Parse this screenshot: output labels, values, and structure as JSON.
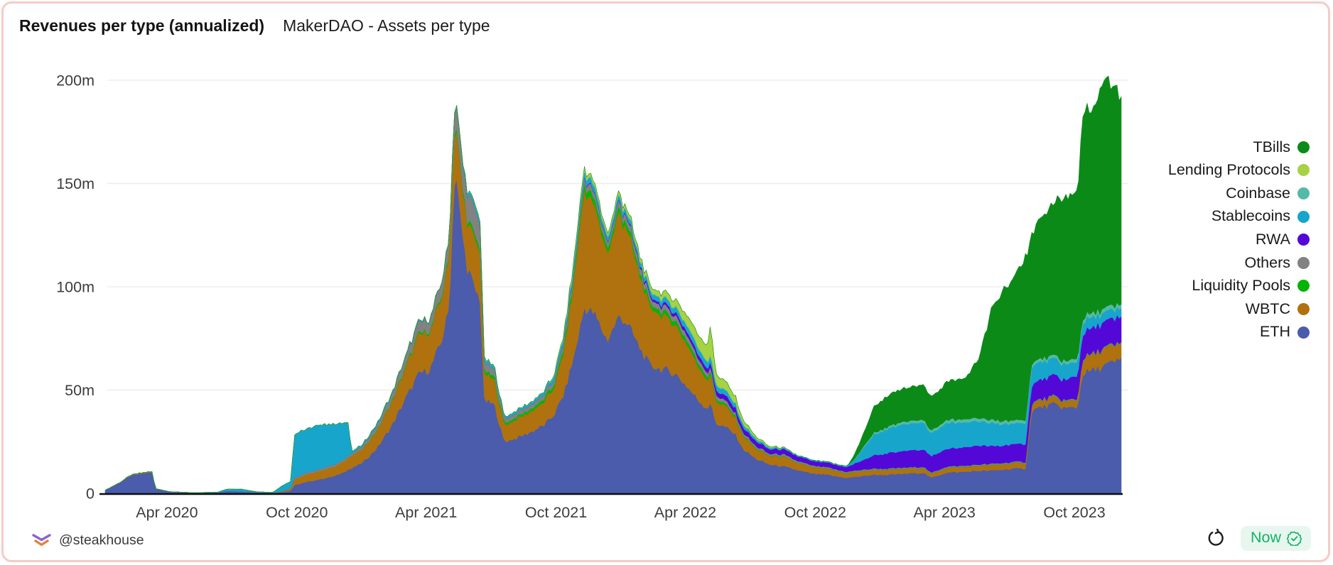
{
  "header": {
    "title": "Revenues per type (annualized)",
    "subtitle": "MakerDAO - Assets per type"
  },
  "footer": {
    "handle": "@steakhouse",
    "now_label": "Now",
    "accent_green": "#15b267",
    "badge_bg": "#e7f6ee"
  },
  "icons": {
    "logo": "steakhouse-bull-icon",
    "refresh": "refresh-icon",
    "verified": "badge-check-icon"
  },
  "chart_data": {
    "type": "area",
    "stacked": true,
    "title": "Revenues per type (annualized)",
    "subtitle": "MakerDAO - Assets per type",
    "unit": "USD millions (annualized)",
    "grid": "horizontal",
    "legend_position": "right",
    "legend_order_note": "legend lists topmost stacked series first",
    "ylim": [
      0,
      200
    ],
    "x_domain": [
      "2019-12-28",
      "2023-12-08"
    ],
    "y_ticks": [
      {
        "value": 0,
        "label": "0"
      },
      {
        "value": 50,
        "label": "50m"
      },
      {
        "value": 100,
        "label": "100m"
      },
      {
        "value": 150,
        "label": "150m"
      },
      {
        "value": 200,
        "label": "200m"
      }
    ],
    "x_ticks": [
      {
        "date": "2020-04-01",
        "label": "Apr 2020"
      },
      {
        "date": "2020-10-01",
        "label": "Oct 2020"
      },
      {
        "date": "2021-04-01",
        "label": "Apr 2021"
      },
      {
        "date": "2021-10-01",
        "label": "Oct 2021"
      },
      {
        "date": "2022-04-01",
        "label": "Apr 2022"
      },
      {
        "date": "2022-10-01",
        "label": "Oct 2022"
      },
      {
        "date": "2023-04-01",
        "label": "Apr 2023"
      },
      {
        "date": "2023-10-01",
        "label": "Oct 2023"
      }
    ],
    "series": [
      {
        "name": "ETH",
        "color": "#4a5cab"
      },
      {
        "name": "WBTC",
        "color": "#b0720e"
      },
      {
        "name": "Liquidity Pools",
        "color": "#04b404"
      },
      {
        "name": "Others",
        "color": "#828282"
      },
      {
        "name": "RWA",
        "color": "#5408d8"
      },
      {
        "name": "Stablecoins",
        "color": "#18a5cc"
      },
      {
        "name": "Coinbase",
        "color": "#53baa5"
      },
      {
        "name": "Lending Protocols",
        "color": "#a6d243"
      },
      {
        "name": "TBills",
        "color": "#0c8a18"
      }
    ],
    "rows_format": [
      "date",
      "ETH",
      "WBTC",
      "Liquidity Pools",
      "Others",
      "RWA",
      "Stablecoins",
      "Coinbase",
      "Lending Protocols",
      "TBills"
    ],
    "rows": [
      [
        "2020-01-05",
        1.5,
        0,
        0,
        0,
        0,
        0,
        0,
        0,
        0
      ],
      [
        "2020-01-25",
        5,
        0.1,
        0,
        0,
        0,
        0,
        0,
        0,
        0
      ],
      [
        "2020-02-10",
        8.5,
        0.2,
        0,
        0.1,
        0,
        0,
        0,
        0,
        0
      ],
      [
        "2020-03-01",
        9.8,
        0.3,
        0,
        0.1,
        0,
        0,
        0,
        0,
        0
      ],
      [
        "2020-03-11",
        10,
        0.3,
        0,
        0.1,
        0,
        0,
        0,
        0,
        0
      ],
      [
        "2020-03-16",
        2.2,
        0.1,
        0,
        0,
        0,
        0,
        0,
        0,
        0
      ],
      [
        "2020-04-05",
        0.8,
        0,
        0,
        0,
        0,
        0,
        0,
        0,
        0
      ],
      [
        "2020-05-10",
        0.3,
        0,
        0,
        0,
        0,
        0,
        0,
        0,
        0
      ],
      [
        "2020-06-12",
        0.4,
        0,
        0,
        0,
        0,
        0.2,
        0,
        0,
        0
      ],
      [
        "2020-06-25",
        1.2,
        0,
        0,
        0,
        0,
        0.9,
        0,
        0,
        0
      ],
      [
        "2020-07-15",
        0.9,
        0,
        0,
        0,
        0,
        1.1,
        0,
        0,
        0
      ],
      [
        "2020-08-05",
        0.5,
        0,
        0,
        0,
        0,
        0.3,
        0,
        0,
        0
      ],
      [
        "2020-08-28",
        0.3,
        0,
        0,
        0,
        0,
        0.1,
        0,
        0,
        0
      ],
      [
        "2020-09-10",
        0.6,
        0.3,
        0,
        0.1,
        0,
        2.6,
        0,
        0,
        0
      ],
      [
        "2020-09-22",
        1.2,
        1,
        0,
        0.2,
        0,
        3.4,
        0,
        0,
        0
      ],
      [
        "2020-09-28",
        4,
        3,
        0,
        0.7,
        0,
        21,
        0,
        0,
        0
      ],
      [
        "2020-10-15",
        5.5,
        3.6,
        0,
        0.8,
        0,
        21.5,
        0,
        0,
        0
      ],
      [
        "2020-11-05",
        7,
        4.2,
        0,
        1,
        0,
        21,
        0,
        0,
        0
      ],
      [
        "2020-11-25",
        8.5,
        4.6,
        0,
        1,
        0,
        19.5,
        0,
        0,
        0
      ],
      [
        "2020-12-12",
        11.5,
        5.6,
        0,
        1,
        0,
        16.5,
        0,
        0,
        0
      ],
      [
        "2020-12-17",
        12,
        6,
        0,
        1,
        0,
        1,
        0,
        0,
        0
      ],
      [
        "2021-01-02",
        15,
        6.5,
        0.1,
        1.3,
        0,
        0.8,
        0,
        0,
        0
      ],
      [
        "2021-01-22",
        22,
        8.5,
        0.3,
        2.2,
        0,
        0.7,
        0,
        0,
        0
      ],
      [
        "2021-02-12",
        33,
        11.5,
        0.5,
        3.2,
        0,
        0.5,
        0,
        0,
        0
      ],
      [
        "2021-03-03",
        46,
        15,
        0.7,
        4.2,
        0,
        0.4,
        0,
        0,
        0
      ],
      [
        "2021-03-22",
        58,
        19,
        0.8,
        5.2,
        0,
        0.4,
        0,
        0,
        0
      ],
      [
        "2021-04-06",
        60,
        18,
        0.8,
        5.2,
        0,
        0.3,
        0,
        0,
        0
      ],
      [
        "2021-04-22",
        73,
        21,
        1,
        6,
        0,
        0.3,
        0,
        0,
        0
      ],
      [
        "2021-05-03",
        89,
        24,
        1.2,
        7.5,
        0,
        0.4,
        0,
        0,
        0
      ],
      [
        "2021-05-12",
        160,
        24,
        1.5,
        10,
        0,
        0.5,
        0,
        0,
        0
      ],
      [
        "2021-05-19",
        133,
        22,
        1.5,
        11.5,
        0,
        0.6,
        0,
        0,
        0
      ],
      [
        "2021-05-28",
        111,
        22,
        1.5,
        12.5,
        0,
        1,
        0.5,
        0,
        0
      ],
      [
        "2021-06-08",
        99,
        24,
        2,
        12.5,
        0,
        1.5,
        0.5,
        0,
        0
      ],
      [
        "2021-06-16",
        94,
        23,
        2,
        12,
        0,
        1.5,
        0.5,
        0,
        0
      ],
      [
        "2021-06-22",
        45,
        13,
        1.5,
        4,
        0,
        1.2,
        0.5,
        0,
        0
      ],
      [
        "2021-07-06",
        43,
        12,
        1.5,
        3.5,
        0,
        1.1,
        0.4,
        0,
        0
      ],
      [
        "2021-07-20",
        25,
        8,
        1,
        2,
        0,
        0.8,
        0.2,
        0,
        0
      ],
      [
        "2021-08-08",
        27,
        9,
        1.1,
        2,
        0,
        0.9,
        0.2,
        0,
        0
      ],
      [
        "2021-08-28",
        30,
        10,
        1.2,
        2,
        0,
        1,
        0.3,
        0,
        0
      ],
      [
        "2021-09-14",
        33,
        11,
        1.5,
        2.1,
        0,
        1.2,
        0.3,
        0,
        0
      ],
      [
        "2021-09-28",
        38,
        13.5,
        1.7,
        2.3,
        0,
        1.5,
        0.5,
        0.3,
        0
      ],
      [
        "2021-10-12",
        48,
        21,
        2,
        2.5,
        0.2,
        2,
        0.5,
        0.8,
        0
      ],
      [
        "2021-10-26",
        66,
        36,
        2.5,
        3,
        0.3,
        2.2,
        0.5,
        1.5,
        0
      ],
      [
        "2021-11-10",
        90,
        57,
        3,
        3,
        0.4,
        2.6,
        0.5,
        1.5,
        0
      ],
      [
        "2021-11-24",
        87,
        52,
        3,
        3,
        0.4,
        2.6,
        0.5,
        1.5,
        0
      ],
      [
        "2021-12-12",
        74,
        42,
        2.5,
        2.6,
        0.4,
        2.1,
        0.5,
        1.4,
        0
      ],
      [
        "2021-12-29",
        86,
        49,
        2.5,
        3,
        0.4,
        2.1,
        0.5,
        1.5,
        0
      ],
      [
        "2022-01-10",
        82,
        45,
        2.5,
        3,
        0.5,
        2,
        0.5,
        1.5,
        0
      ],
      [
        "2022-01-26",
        71,
        36,
        2,
        3,
        0.8,
        2,
        0.5,
        1.7,
        0
      ],
      [
        "2022-02-10",
        62,
        28,
        2,
        2.6,
        1,
        2.1,
        0.5,
        2,
        0
      ],
      [
        "2022-03-01",
        60,
        26,
        2,
        2.5,
        1.2,
        2.3,
        0.5,
        2.6,
        0
      ],
      [
        "2022-03-18",
        58,
        24,
        2,
        2.5,
        1.5,
        2.5,
        0.5,
        3.2,
        0
      ],
      [
        "2022-04-03",
        52,
        21,
        2,
        2.5,
        1.8,
        2.7,
        0.5,
        4.6,
        0
      ],
      [
        "2022-04-17",
        46,
        17,
        1.8,
        2.2,
        2,
        3,
        0.5,
        5.6,
        0
      ],
      [
        "2022-05-02",
        41,
        14,
        1.5,
        2,
        2.2,
        3,
        0.5,
        7.5,
        0
      ],
      [
        "2022-05-06",
        44,
        14,
        1.5,
        2,
        2.2,
        3,
        0.5,
        14,
        0
      ],
      [
        "2022-05-14",
        34,
        11,
        1.2,
        1.8,
        2.4,
        2.6,
        0.4,
        5,
        0
      ],
      [
        "2022-05-28",
        32,
        10,
        1,
        1.5,
        2.4,
        2.4,
        0.4,
        4,
        0
      ],
      [
        "2022-06-12",
        28,
        8,
        0.8,
        1.2,
        2.5,
        2,
        0.3,
        3,
        0
      ],
      [
        "2022-06-20",
        22,
        6.5,
        0.6,
        1,
        2.5,
        1.6,
        0.2,
        2,
        0
      ],
      [
        "2022-07-08",
        17,
        5,
        0.4,
        0.8,
        2.4,
        1.2,
        0.1,
        1,
        0
      ],
      [
        "2022-07-28",
        14,
        4.2,
        0.3,
        0.7,
        2.2,
        0.8,
        0,
        0.5,
        0
      ],
      [
        "2022-08-18",
        13,
        4.6,
        0.3,
        0.8,
        2.5,
        0.6,
        0,
        0.2,
        0
      ],
      [
        "2022-09-08",
        11,
        3.5,
        0.2,
        0.7,
        2.3,
        0.4,
        0,
        0,
        0
      ],
      [
        "2022-09-28",
        9.5,
        3,
        0.2,
        0.6,
        2.2,
        0.4,
        0,
        0,
        0
      ],
      [
        "2022-10-18",
        9,
        2.8,
        0.2,
        0.6,
        2.3,
        0.4,
        0,
        0,
        0
      ],
      [
        "2022-11-04",
        8,
        2.4,
        0.2,
        0.5,
        2.2,
        0.4,
        0,
        0,
        0
      ],
      [
        "2022-11-16",
        7.5,
        2.2,
        0.2,
        0.5,
        2.4,
        0.6,
        0,
        0,
        0
      ],
      [
        "2022-11-26",
        8,
        2.3,
        0.2,
        0.5,
        3.5,
        2,
        0.3,
        0,
        2.5
      ],
      [
        "2022-12-10",
        8.5,
        2.3,
        0.2,
        0.5,
        5,
        6.5,
        0.6,
        0,
        7
      ],
      [
        "2022-12-22",
        9,
        2.3,
        0.2,
        0.5,
        6.5,
        10,
        0.8,
        0,
        12.5
      ],
      [
        "2023-01-12",
        9,
        2.2,
        0.2,
        0.5,
        7.5,
        12,
        1,
        0,
        15
      ],
      [
        "2023-02-03",
        9.5,
        2.2,
        0.2,
        0.5,
        8,
        13,
        1.2,
        0,
        16
      ],
      [
        "2023-03-03",
        10,
        2.2,
        0.2,
        0.5,
        8.5,
        13,
        1.3,
        0,
        17
      ],
      [
        "2023-03-13",
        7.5,
        1.8,
        0.2,
        0.4,
        8,
        11,
        1.2,
        0,
        16
      ],
      [
        "2023-04-03",
        10,
        2.2,
        0.2,
        0.5,
        8.5,
        12.5,
        1.4,
        0,
        18
      ],
      [
        "2023-05-02",
        10.5,
        2.2,
        0.2,
        0.5,
        9,
        12,
        1.5,
        0,
        20.5
      ],
      [
        "2023-05-21",
        11,
        2.3,
        0.2,
        0.5,
        9,
        11.5,
        1.5,
        0,
        30
      ],
      [
        "2023-06-06",
        11,
        2.5,
        0.2,
        0.5,
        8.5,
        11,
        1.5,
        0,
        53
      ],
      [
        "2023-06-22",
        11.5,
        2.5,
        0.2,
        0.5,
        8.5,
        10.5,
        1.5,
        0,
        62
      ],
      [
        "2023-07-08",
        12,
        2.5,
        0.2,
        0.5,
        8.5,
        10,
        1.5,
        0,
        70
      ],
      [
        "2023-07-24",
        12,
        2.5,
        0.2,
        0.5,
        8.5,
        10,
        1.5,
        0,
        79
      ],
      [
        "2023-08-02",
        40,
        3,
        0.2,
        0.5,
        9,
        9,
        1.5,
        0,
        63
      ],
      [
        "2023-08-17",
        42,
        3,
        0.2,
        0.5,
        9.5,
        8.5,
        1.5,
        0,
        69
      ],
      [
        "2023-09-02",
        43,
        3,
        0.2,
        0.5,
        10,
        8,
        1.5,
        0,
        75
      ],
      [
        "2023-09-21",
        41,
        3,
        0.2,
        0.5,
        10,
        7.5,
        1.5,
        0,
        80
      ],
      [
        "2023-10-06",
        42,
        3.5,
        0.2,
        0.5,
        11,
        6.5,
        1.8,
        0,
        80
      ],
      [
        "2023-10-12",
        58,
        7,
        0.2,
        0.5,
        12,
        5.5,
        2,
        0,
        96
      ],
      [
        "2023-11-01",
        60,
        7.5,
        0.2,
        0.5,
        12.5,
        5,
        2,
        0,
        103
      ],
      [
        "2023-11-13",
        62,
        8,
        0.2,
        0.5,
        12.5,
        4.5,
        2,
        0,
        110
      ],
      [
        "2023-11-24",
        63,
        7.5,
        0.2,
        0.5,
        12.5,
        4.2,
        2,
        0,
        105
      ],
      [
        "2023-12-08",
        65,
        7,
        0.2,
        0.5,
        12.5,
        4,
        2,
        0,
        101
      ]
    ]
  }
}
